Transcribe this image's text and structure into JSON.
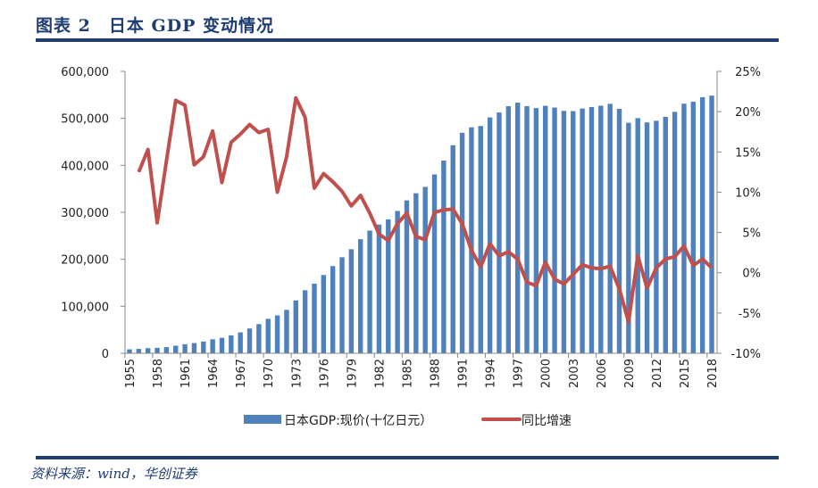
{
  "title": "图表 2　日本 GDP 变动情况",
  "source": "资料来源：wind，华创证券",
  "colors": {
    "bar": "#4f81bd",
    "line": "#c0504d",
    "title": "#1f3c73"
  },
  "chart_data": {
    "type": "bar+line",
    "legend_position": "bottom",
    "grid": false,
    "years": [
      1955,
      1956,
      1957,
      1958,
      1959,
      1960,
      1961,
      1962,
      1963,
      1964,
      1965,
      1966,
      1967,
      1968,
      1969,
      1970,
      1971,
      1972,
      1973,
      1974,
      1975,
      1976,
      1977,
      1978,
      1979,
      1980,
      1981,
      1982,
      1983,
      1984,
      1985,
      1986,
      1987,
      1988,
      1989,
      1990,
      1991,
      1992,
      1993,
      1994,
      1995,
      1996,
      1997,
      1998,
      1999,
      2000,
      2001,
      2002,
      2003,
      2004,
      2005,
      2006,
      2007,
      2008,
      2009,
      2010,
      2011,
      2012,
      2013,
      2014,
      2015,
      2016,
      2017,
      2018
    ],
    "x_tick_labels": [
      "1955",
      "1958",
      "1961",
      "1964",
      "1967",
      "1970",
      "1973",
      "1976",
      "1979",
      "1982",
      "1985",
      "1988",
      "1991",
      "1994",
      "1997",
      "2000",
      "2003",
      "2006",
      "2009",
      "2012",
      "2015",
      "2018"
    ],
    "left_axis": {
      "ylim": [
        0,
        600000
      ],
      "tick_labels": [
        "0",
        "100,000",
        "200,000",
        "300,000",
        "400,000",
        "500,000",
        "600,000"
      ]
    },
    "right_axis": {
      "ylim": [
        -10,
        25
      ],
      "tick_labels": [
        "-10%",
        "-5%",
        "0%",
        "5%",
        "10%",
        "15%",
        "20%",
        "25%"
      ]
    },
    "series": [
      {
        "name": "日本GDP:现价(十亿日元）",
        "type": "bar",
        "axis": "left",
        "values": [
          8400,
          9400,
          10900,
          11600,
          13200,
          16000,
          19300,
          21800,
          25100,
          29700,
          32900,
          38200,
          44500,
          52800,
          62100,
          73300,
          80700,
          92400,
          112500,
          134200,
          148300,
          166600,
          185600,
          204400,
          221500,
          242800,
          261100,
          274100,
          285100,
          302900,
          325400,
          340600,
          354200,
          380700,
          410100,
          442800,
          469400,
          480800,
          483700,
          502000,
          512500,
          525800,
          533400,
          526000,
          521900,
          526700,
          523000,
          515900,
          515400,
          520900,
          524100,
          526900,
          531000,
          520200,
          490600,
          500400,
          491400,
          494900,
          503200,
          513900,
          531300,
          535400,
          545100,
          548400
        ]
      },
      {
        "name": "同比增速",
        "type": "line",
        "axis": "right",
        "unit": "%",
        "values": [
          null,
          12.5,
          15.3,
          6.2,
          13.9,
          21.4,
          20.8,
          13.4,
          14.4,
          17.6,
          11.2,
          16.2,
          17.2,
          18.4,
          17.4,
          17.8,
          10.0,
          14.4,
          21.7,
          19.3,
          10.5,
          12.3,
          11.3,
          10.1,
          8.3,
          9.6,
          7.4,
          4.8,
          4.0,
          6.1,
          7.4,
          4.5,
          4.1,
          7.5,
          7.8,
          7.9,
          6.1,
          2.8,
          0.7,
          3.6,
          2.1,
          2.6,
          1.7,
          -1.2,
          -1.6,
          1.3,
          -0.8,
          -1.4,
          -0.2,
          1.0,
          0.6,
          0.5,
          0.8,
          -2.0,
          -6.1,
          2.1,
          -1.9,
          0.6,
          1.7,
          2.0,
          3.3,
          0.9,
          1.7,
          0.6
        ]
      }
    ]
  }
}
